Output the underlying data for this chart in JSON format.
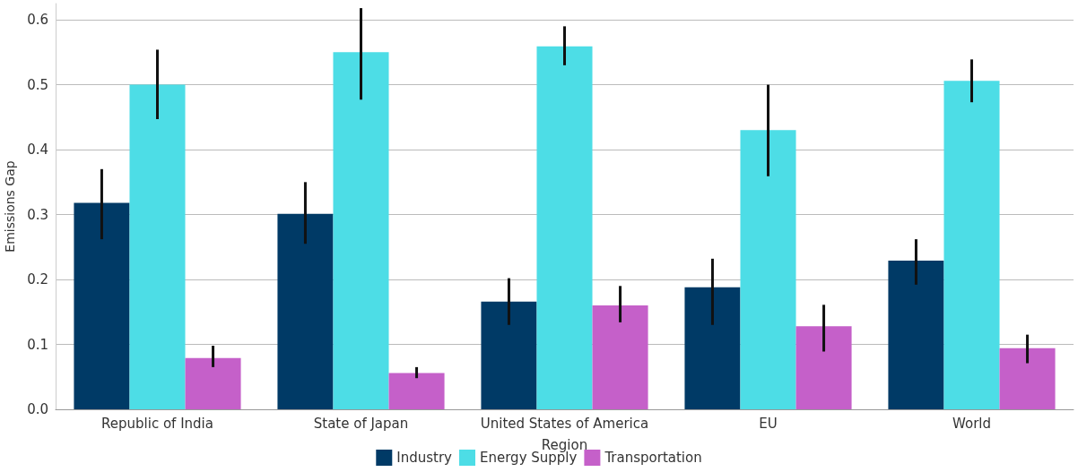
{
  "chart_data": {
    "type": "bar",
    "xlabel": "Region",
    "ylabel": "Emissions Gap",
    "categories": [
      "Republic of India",
      "State of Japan",
      "United States of America",
      "EU",
      "World"
    ],
    "series": [
      {
        "name": "Industry",
        "color": "#003a66",
        "values": [
          0.318,
          0.301,
          0.166,
          0.188,
          0.229
        ],
        "errors": [
          [
            0.262,
            0.37
          ],
          [
            0.255,
            0.35
          ],
          [
            0.13,
            0.202
          ],
          [
            0.13,
            0.232
          ],
          [
            0.192,
            0.262
          ]
        ]
      },
      {
        "name": "Energy Supply",
        "color": "#4ddde6",
        "values": [
          0.5,
          0.55,
          0.559,
          0.43,
          0.506
        ],
        "errors": [
          [
            0.447,
            0.554
          ],
          [
            0.477,
            0.618
          ],
          [
            0.53,
            0.59
          ],
          [
            0.359,
            0.5
          ],
          [
            0.473,
            0.539
          ]
        ]
      },
      {
        "name": "Transportation",
        "color": "#c560c9",
        "values": [
          0.079,
          0.056,
          0.16,
          0.128,
          0.094
        ],
        "errors": [
          [
            0.065,
            0.098
          ],
          [
            0.048,
            0.065
          ],
          [
            0.134,
            0.19
          ],
          [
            0.089,
            0.161
          ],
          [
            0.071,
            0.115
          ]
        ]
      }
    ],
    "ylim": [
      0,
      0.625
    ],
    "yticks": [
      {
        "value": 0,
        "label": "0.0"
      },
      {
        "value": 0.1,
        "label": "0.1"
      },
      {
        "value": 0.2,
        "label": "0.2"
      },
      {
        "value": 0.3,
        "label": "0.3"
      },
      {
        "value": 0.4,
        "label": "0.4"
      },
      {
        "value": 0.5,
        "label": "0.5"
      },
      {
        "value": 0.6,
        "label": "0.6"
      }
    ],
    "grid": "y",
    "legend": "bottom"
  }
}
